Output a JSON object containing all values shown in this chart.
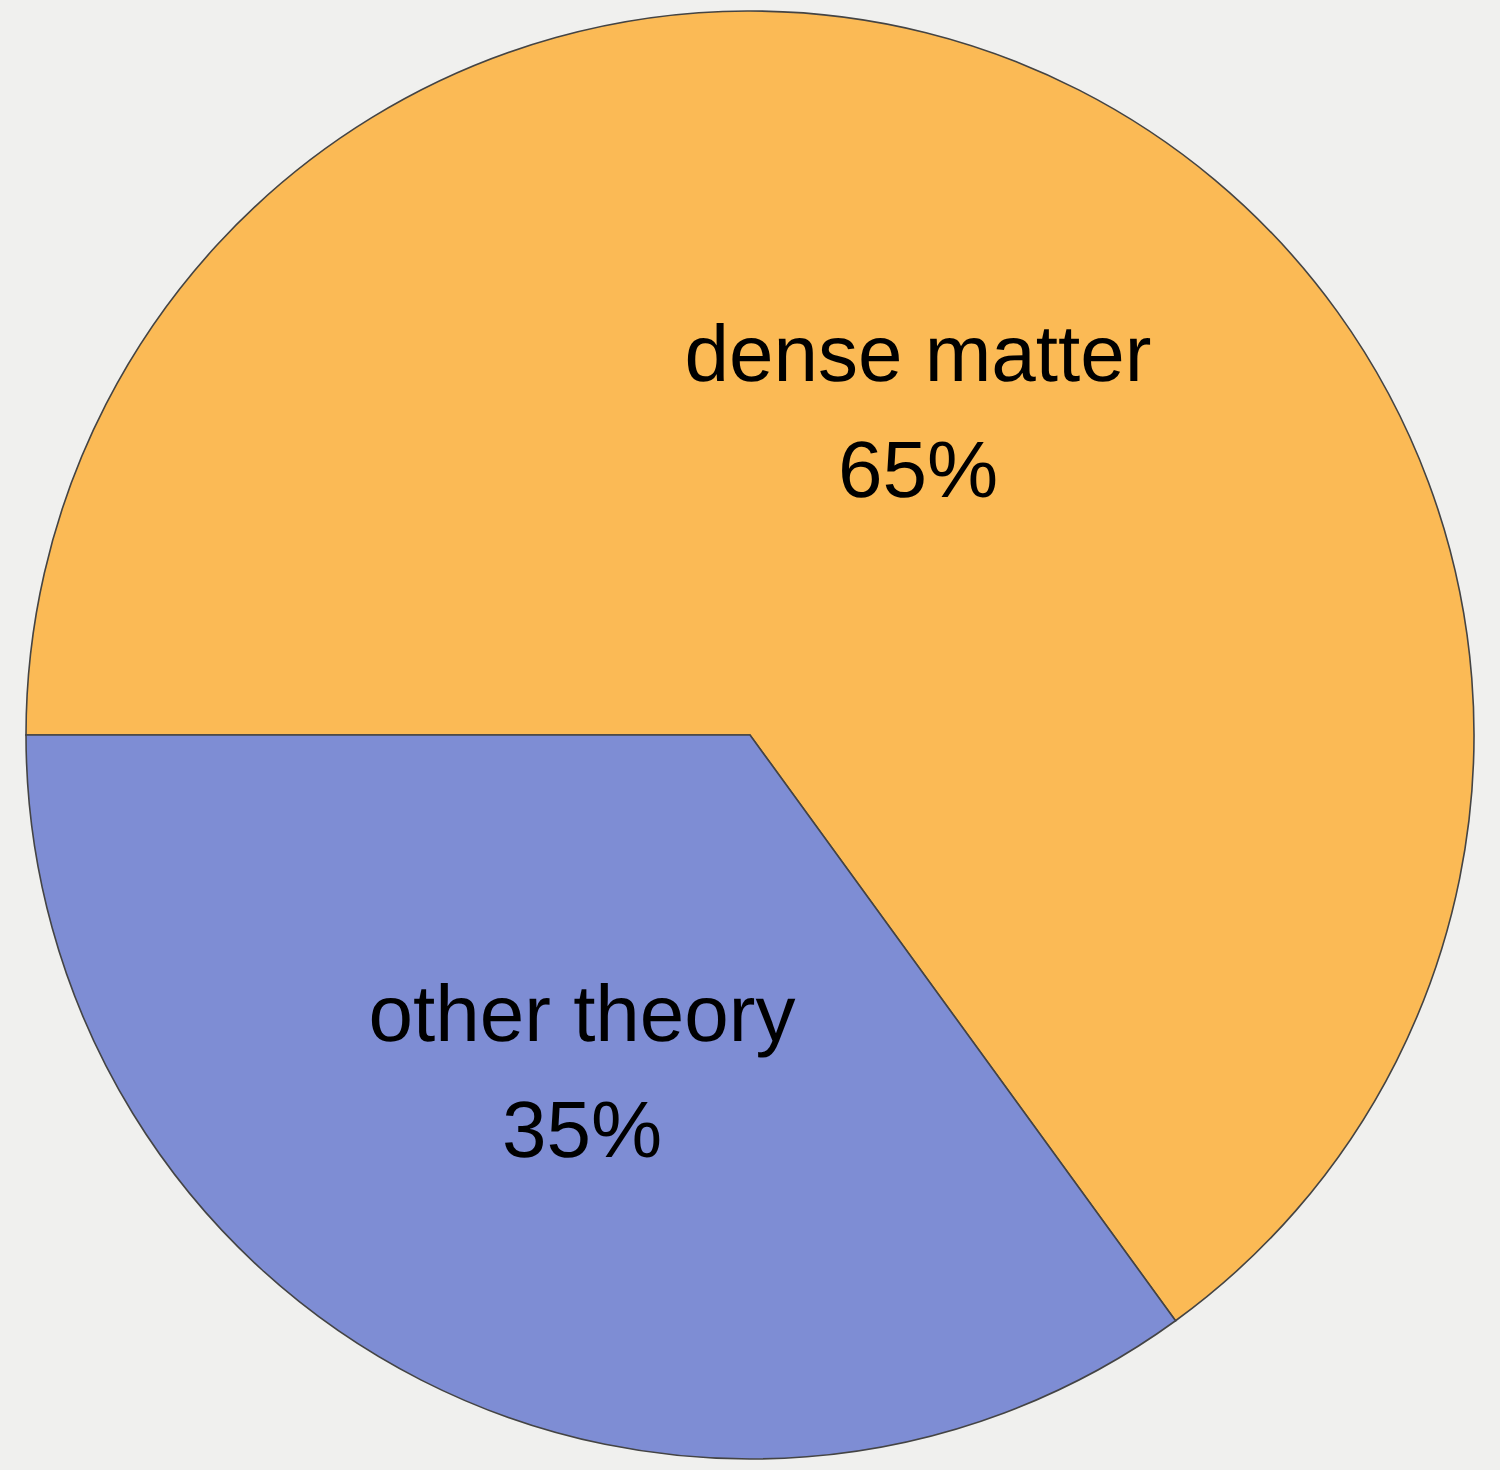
{
  "chart_data": {
    "type": "pie",
    "categories": [
      "dense matter",
      "other theory"
    ],
    "values": [
      65,
      35
    ],
    "value_labels": [
      "65%",
      "35%"
    ],
    "colors": [
      "#fbba55",
      "#7e8dd4"
    ]
  }
}
